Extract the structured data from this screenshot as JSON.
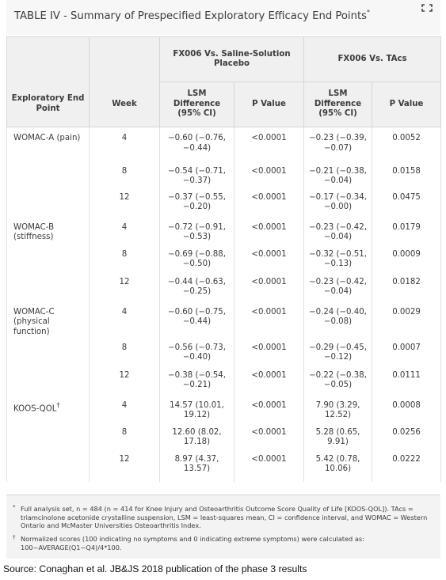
{
  "title": {
    "text": "TABLE IV - Summary of Prespecified Exploratory Efficacy End Points",
    "marker": "*"
  },
  "header": {
    "group1": "FX006 Vs. Saline-Solution Placebo",
    "group2": "FX006 Vs. TAcs",
    "endpoint": "Exploratory End Point",
    "week": "Week",
    "lsm": "LSM Difference (95% CI)",
    "pvalue": "P Value"
  },
  "rows": [
    {
      "endpoint": "WOMAC-A (pain)",
      "week": "4",
      "lsm1": "−0.60 (−0.76, −0.44)",
      "p1": "<0.0001",
      "lsm2": "−0.23 (−0.39, −0.07)",
      "p2": "0.0052"
    },
    {
      "endpoint": "",
      "week": "8",
      "lsm1": "−0.54 (−0.71, −0.37)",
      "p1": "<0.0001",
      "lsm2": "−0.21 (−0.38, −0.04)",
      "p2": "0.0158"
    },
    {
      "endpoint": "",
      "week": "12",
      "lsm1": "−0.37 (−0.55, −0.20)",
      "p1": "<0.0001",
      "lsm2": "−0.17 (−0.34, −0.00)",
      "p2": "0.0475"
    },
    {
      "endpoint": "WOMAC-B (stiffness)",
      "week": "4",
      "lsm1": "−0.72 (−0.91, −0.53)",
      "p1": "<0.0001",
      "lsm2": "−0.23 (−0.42, −0.04)",
      "p2": "0.0179"
    },
    {
      "endpoint": "",
      "week": "8",
      "lsm1": "−0.69 (−0.88, −0.50)",
      "p1": "<0.0001",
      "lsm2": "−0.32 (−0.51, −0.13)",
      "p2": "0.0009"
    },
    {
      "endpoint": "",
      "week": "12",
      "lsm1": "−0.44 (−0.63, −0.25)",
      "p1": "<0.0001",
      "lsm2": "−0.23 (−0.42, −0.04)",
      "p2": "0.0182"
    },
    {
      "endpoint": "WOMAC-C (physical function)",
      "week": "4",
      "lsm1": "−0.60 (−0.75, −0.44)",
      "p1": "<0.0001",
      "lsm2": "−0.24 (−0.40, −0.08)",
      "p2": "0.0029"
    },
    {
      "endpoint": "",
      "week": "8",
      "lsm1": "−0.56 (−0.73, −0.40)",
      "p1": "<0.0001",
      "lsm2": "−0.29 (−0.45, −0.12)",
      "p2": "0.0007"
    },
    {
      "endpoint": "",
      "week": "12",
      "lsm1": "−0.38 (−0.54, −0.21)",
      "p1": "<0.0001",
      "lsm2": "−0.22 (−0.38, −0.05)",
      "p2": "0.0111"
    },
    {
      "endpoint": "KOOS-QOL",
      "endpoint_marker": "†",
      "week": "4",
      "lsm1": "14.57 (10.01, 19.12)",
      "p1": "<0.0001",
      "lsm2": "7.90 (3.29, 12.52)",
      "p2": "0.0008"
    },
    {
      "endpoint": "",
      "week": "8",
      "lsm1": "12.60 (8.02, 17.18)",
      "p1": "<0.0001",
      "lsm2": "5.28 (0.65, 9.91)",
      "p2": "0.0256"
    },
    {
      "endpoint": "",
      "week": "12",
      "lsm1": "8.97 (4.37, 13.57)",
      "p1": "<0.0001",
      "lsm2": "5.42 (0.78, 10.06)",
      "p2": "0.0222"
    }
  ],
  "footnotes": [
    {
      "marker": "*",
      "text": "Full analysis set, n = 484 (n = 414 for Knee Injury and Osteoarthritis Outcome Score Quality of Life [KOOS-QOL]). TAcs = triamcinolone acetonide crystalline suspension, LSM = least-squares mean, CI = confidence interval, and WOMAC = Western Ontario and McMaster Universities Osteoarthritis Index."
    },
    {
      "marker": "†",
      "text": "Normalized scores (100 indicating no symptoms and 0 indicating extreme symptoms) were calculated as: 100−AVERAGE(Q1−Q4)/4*100."
    }
  ],
  "source": "Source: Conaghan et al. JB&JS 2018 publication of the phase 3 results",
  "icons": {
    "expand": "expand-icon"
  },
  "colors": {
    "header_bg": "#f0f0f0",
    "title_bg": "#f7f7f7",
    "footnote_bg": "#f3f3f3"
  }
}
